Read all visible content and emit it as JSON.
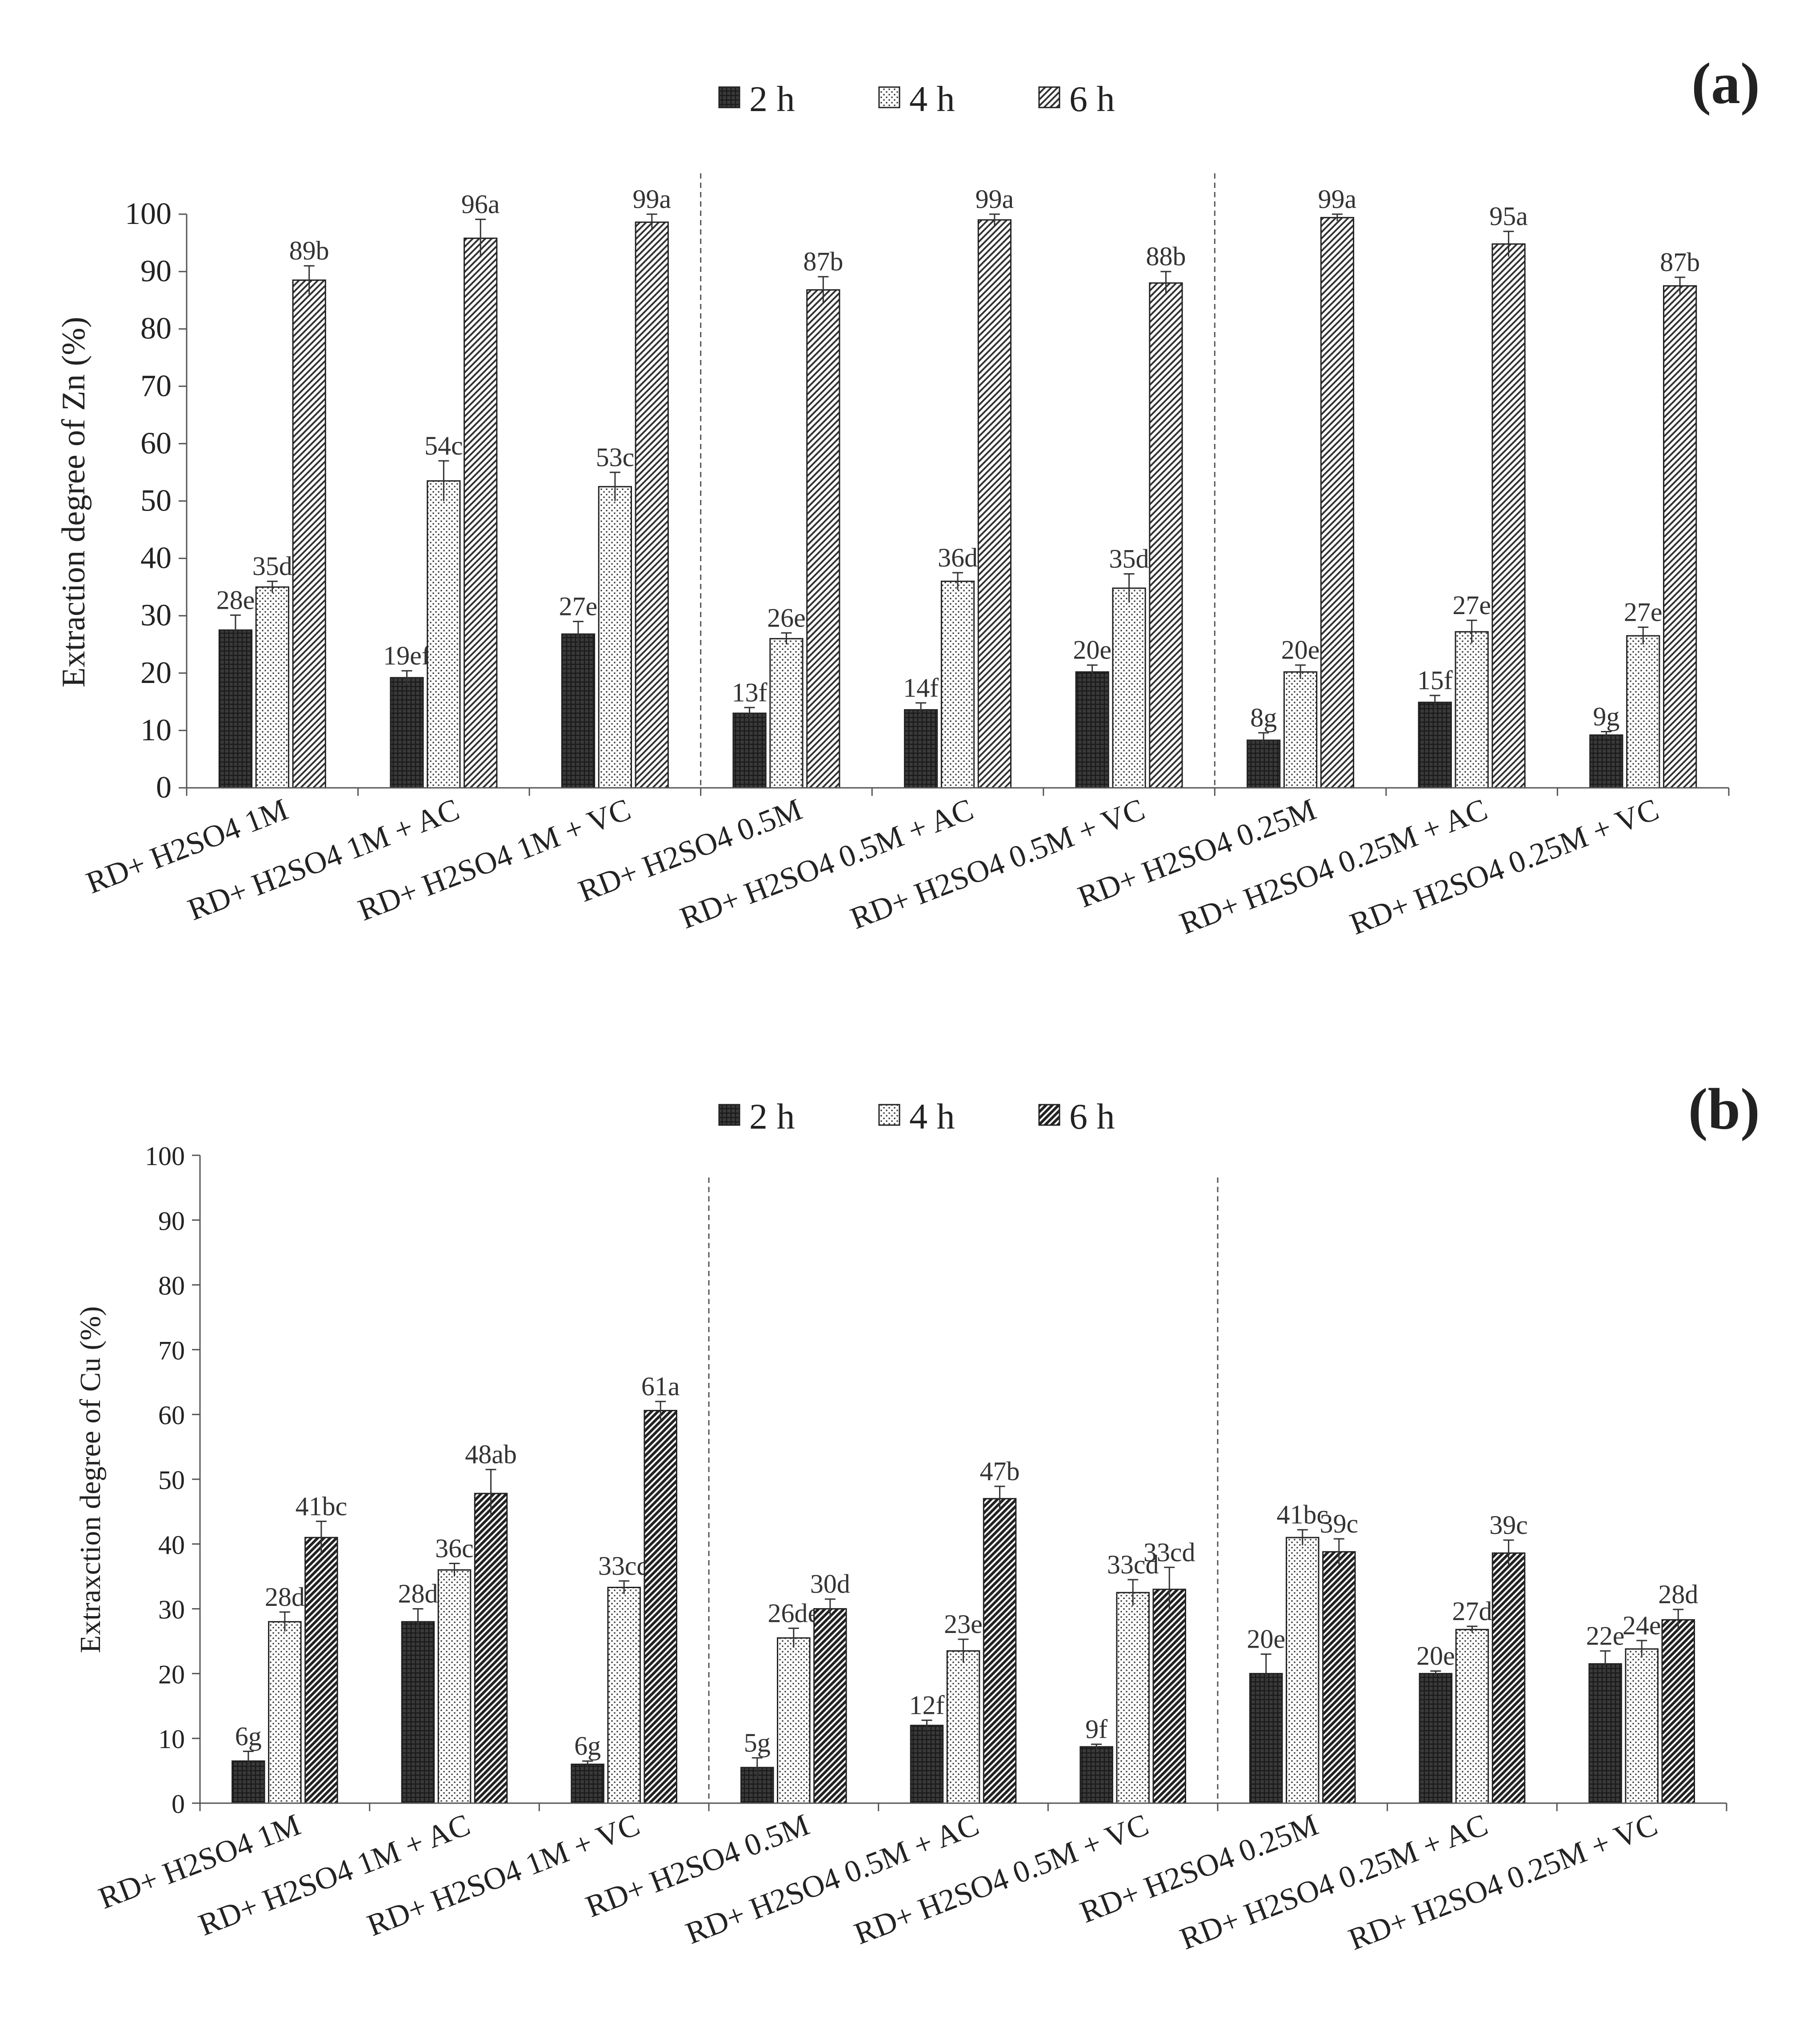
{
  "legend": [
    "2 h",
    "4 h",
    "6 h"
  ],
  "chart_data": [
    {
      "panel_label": "(a)",
      "type": "bar",
      "ylabel": "Extraction degree of Zn (%)",
      "ylim": [
        0,
        100
      ],
      "yticks": [
        0,
        10,
        20,
        30,
        40,
        50,
        60,
        70,
        80,
        90,
        100
      ],
      "legend_position": "top-center",
      "group_separators_after": [
        3,
        6
      ],
      "categories": [
        "RD+ H2SO4 1M",
        "RD+ H2SO4 1M + AC",
        "RD+ H2SO4 1M + VC",
        "RD+ H2SO4 0.5M",
        "RD+ H2SO4 0.5M + AC",
        "RD+ H2SO4 0.5M + VC",
        "RD+ H2SO4 0.25M",
        "RD+ H2SO4 0.25M + AC",
        "RD+ H2SO4 0.25M + VC"
      ],
      "series": [
        {
          "name": "2 h",
          "values": [
            27.5,
            19.2,
            26.8,
            13.0,
            13.6,
            20.2,
            8.3,
            14.9,
            9.2
          ],
          "errors": [
            2.6,
            1.2,
            2.2,
            1.0,
            1.2,
            1.2,
            1.3,
            1.2,
            0.6
          ],
          "labels": [
            "28e",
            "19ef",
            "27e",
            "13f",
            "14f",
            "20e",
            "8g",
            "15f",
            "9g"
          ]
        },
        {
          "name": "4 h",
          "values": [
            35.0,
            53.5,
            52.5,
            26.0,
            36.0,
            34.8,
            20.2,
            27.2,
            26.5
          ],
          "errors": [
            1.0,
            3.5,
            2.5,
            1.0,
            1.5,
            2.5,
            1.2,
            2.0,
            1.5
          ],
          "labels": [
            "35d",
            "54c",
            "53c",
            "26e",
            "36d",
            "35d",
            "20e",
            "27e",
            "27e"
          ]
        },
        {
          "name": "6 h",
          "values": [
            88.5,
            95.8,
            98.6,
            86.8,
            99.0,
            88.0,
            99.4,
            94.8,
            87.5
          ],
          "errors": [
            2.5,
            3.3,
            1.4,
            2.3,
            1.0,
            2.0,
            0.6,
            2.2,
            1.5
          ],
          "labels": [
            "89b",
            "96a",
            "99a",
            "87b",
            "99a",
            "88b",
            "99a",
            "95a",
            "87b"
          ]
        }
      ]
    },
    {
      "panel_label": "(b)",
      "type": "bar",
      "ylabel": "Extraxction degree of Cu (%)",
      "ylim": [
        0,
        100
      ],
      "yticks": [
        0,
        10,
        20,
        30,
        40,
        50,
        60,
        70,
        80,
        90,
        100
      ],
      "legend_position": "top-center",
      "group_separators_after": [
        3,
        6
      ],
      "categories": [
        "RD+ H2SO4 1M",
        "RD+ H2SO4 1M + AC",
        "RD+ H2SO4 1M + VC",
        "RD+ H2SO4 0.5M",
        "RD+ H2SO4 0.5M + AC",
        "RD+ H2SO4 0.5M + VC",
        "RD+ H2SO4 0.25M",
        "RD+ H2SO4 0.25M + AC",
        "RD+ H2SO4 0.25M + VC"
      ],
      "series": [
        {
          "name": "2 h",
          "values": [
            6.5,
            28.0,
            6.0,
            5.5,
            12.0,
            8.7,
            20.0,
            20.0,
            21.5
          ],
          "errors": [
            1.5,
            2.0,
            0.5,
            1.5,
            0.8,
            0.4,
            3.0,
            0.4,
            2.0
          ],
          "labels": [
            "6g",
            "28d",
            "6g",
            "5g",
            "12f",
            "9f",
            "20e",
            "20e",
            "22e"
          ]
        },
        {
          "name": "4 h",
          "values": [
            28.0,
            36.0,
            33.3,
            25.5,
            23.5,
            32.5,
            41.0,
            26.8,
            23.8
          ],
          "errors": [
            1.5,
            1.0,
            1.0,
            1.5,
            1.8,
            2.0,
            1.2,
            0.5,
            1.3
          ],
          "labels": [
            "28d",
            "36c",
            "33cd",
            "26de",
            "23e",
            "33cd",
            "41bc",
            "27d",
            "24e"
          ]
        },
        {
          "name": "6 h",
          "values": [
            41.0,
            47.8,
            60.6,
            30.0,
            47.0,
            33.0,
            38.8,
            38.6,
            28.3
          ],
          "errors": [
            2.5,
            3.7,
            1.4,
            1.5,
            1.9,
            3.4,
            2.0,
            2.0,
            1.6
          ],
          "labels": [
            "41bc",
            "48ab",
            "61a",
            "30d",
            "47b",
            "33cd",
            "39c",
            "39c",
            "28d"
          ]
        }
      ]
    }
  ]
}
